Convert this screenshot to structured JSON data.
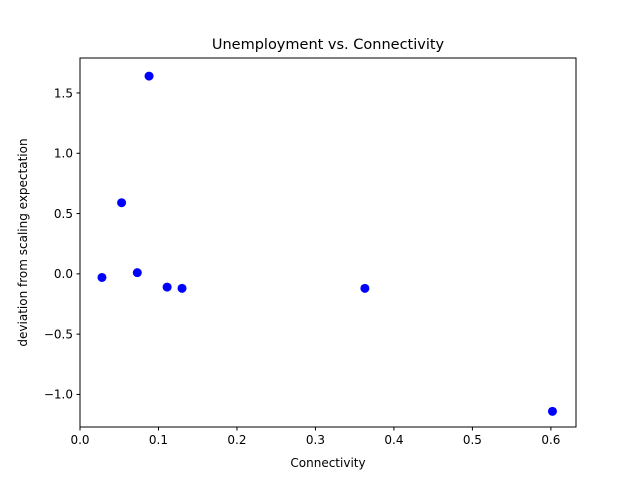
{
  "chart_data": {
    "type": "scatter",
    "title": "Unemployment vs. Connectivity",
    "xlabel": "Connectivity",
    "ylabel": "deviation from scaling expectation",
    "xlim": [
      0.0,
      0.632
    ],
    "ylim": [
      -1.27,
      1.79
    ],
    "xticks": [
      0.0,
      0.1,
      0.2,
      0.3,
      0.4,
      0.5,
      0.6
    ],
    "xtick_labels": [
      "0.0",
      "0.1",
      "0.2",
      "0.3",
      "0.4",
      "0.5",
      "0.6"
    ],
    "yticks": [
      -1.0,
      -0.5,
      0.0,
      0.5,
      1.0,
      1.5
    ],
    "ytick_labels": [
      "−1.0",
      "−0.5",
      "0.0",
      "0.5",
      "1.0",
      "1.5"
    ],
    "grid": false,
    "marker_color": "#0000ff",
    "points": [
      {
        "x": 0.028,
        "y": -0.03
      },
      {
        "x": 0.053,
        "y": 0.59
      },
      {
        "x": 0.073,
        "y": 0.01
      },
      {
        "x": 0.088,
        "y": 1.64
      },
      {
        "x": 0.111,
        "y": -0.11
      },
      {
        "x": 0.13,
        "y": -0.12
      },
      {
        "x": 0.363,
        "y": -0.12
      },
      {
        "x": 0.602,
        "y": -1.14
      }
    ]
  }
}
